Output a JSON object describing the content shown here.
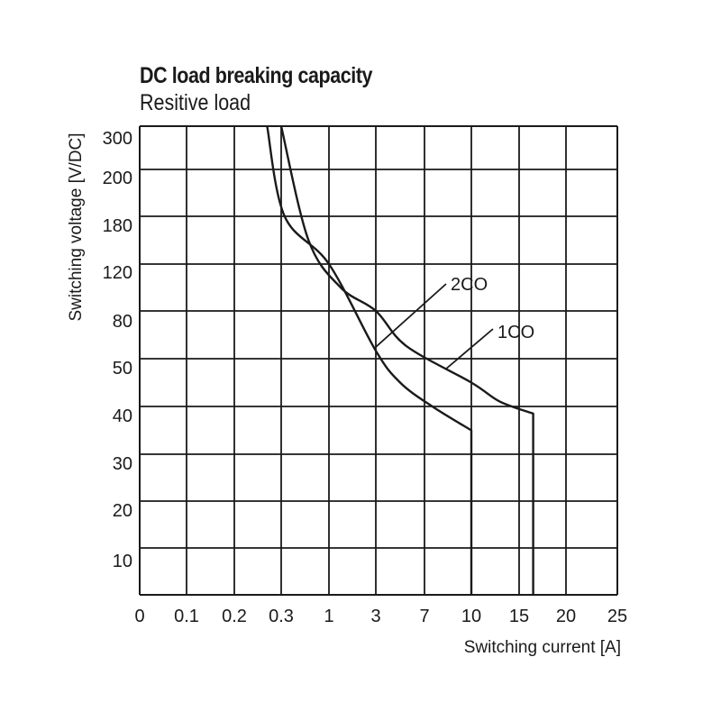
{
  "chart_data": {
    "type": "line",
    "title": "DC load breaking capacity",
    "subtitle": "Resitive load",
    "xlabel": "Switching current [A]",
    "ylabel": "Switching voltage [V/DC]",
    "x_scale": "categorical (non-linear ticks)",
    "y_scale": "categorical (non-linear ticks)",
    "x_ticks": [
      "0",
      "0.1",
      "0.2",
      "0.3",
      "1",
      "3",
      "7",
      "10",
      "15",
      "20",
      "25"
    ],
    "y_ticks": [
      "",
      "10",
      "20",
      "30",
      "40",
      "50",
      "80",
      "120",
      "180",
      "200",
      "300"
    ],
    "grid": true,
    "series": [
      {
        "name": "1CO",
        "points": [
          {
            "x": 0.3,
            "y": 300
          },
          {
            "x": 0.7,
            "y": 150
          },
          {
            "x": 1.5,
            "y": 100
          },
          {
            "x": 3,
            "y": 80
          },
          {
            "x": 5.5,
            "y": 58
          },
          {
            "x": 10,
            "y": 45
          },
          {
            "x": 13,
            "y": 41
          },
          {
            "x": 16.5,
            "y": 38.5
          },
          {
            "x": 16.5,
            "y": 0
          }
        ]
      },
      {
        "name": "2CO",
        "points": [
          {
            "x": 0.27,
            "y": 300
          },
          {
            "x": 0.35,
            "y": 180
          },
          {
            "x": 1,
            "y": 120
          },
          {
            "x": 3,
            "y": 55
          },
          {
            "x": 5,
            "y": 45
          },
          {
            "x": 7.5,
            "y": 40
          },
          {
            "x": 10,
            "y": 35
          },
          {
            "x": 10,
            "y": 0
          }
        ]
      }
    ],
    "annotations": [
      "2CO",
      "1CO"
    ]
  }
}
